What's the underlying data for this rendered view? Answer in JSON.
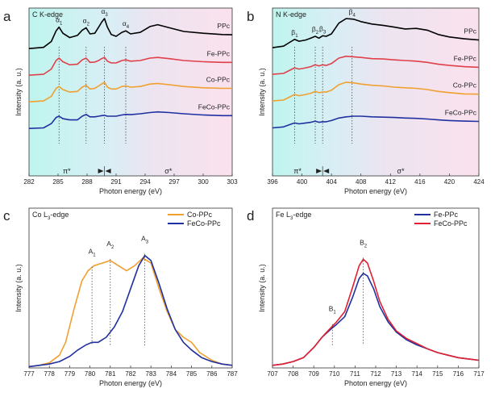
{
  "chart_data": [
    {
      "type": "line",
      "panel": "a",
      "title": "C K-edge",
      "xlabel": "Photon energy (eV)",
      "ylabel": "Intensity (a. u.)",
      "xlim": [
        282,
        303
      ],
      "xticks": [
        282,
        285,
        288,
        291,
        294,
        297,
        300,
        303
      ],
      "series_labels_side": "right",
      "series": [
        {
          "name": "PPc",
          "color": "#000000",
          "offset": 3,
          "x": [
            282,
            283.5,
            284.3,
            284.8,
            285.1,
            285.5,
            286.2,
            287.0,
            287.5,
            287.9,
            288.3,
            288.8,
            289.2,
            289.5,
            289.8,
            290.1,
            290.5,
            291.0,
            291.6,
            292.0,
            292.5,
            293.5,
            294.5,
            295.3,
            296.5,
            298,
            300,
            302,
            303
          ],
          "y": [
            0.02,
            0.06,
            0.25,
            0.6,
            0.72,
            0.52,
            0.38,
            0.45,
            0.62,
            0.7,
            0.5,
            0.52,
            0.72,
            0.88,
            1.0,
            0.72,
            0.48,
            0.42,
            0.55,
            0.6,
            0.5,
            0.55,
            0.74,
            0.8,
            0.7,
            0.58,
            0.52,
            0.48,
            0.47
          ]
        },
        {
          "name": "Fe-PPc",
          "color": "#e0404a",
          "offset": 2,
          "x": [
            282,
            283.5,
            284.3,
            284.8,
            285.1,
            285.5,
            286.2,
            287.0,
            287.5,
            287.9,
            288.3,
            288.8,
            289.2,
            289.5,
            289.8,
            290.1,
            290.5,
            291.0,
            291.6,
            292.0,
            292.5,
            293.5,
            294.5,
            295.3,
            296.5,
            298,
            300,
            302,
            303
          ],
          "y": [
            0.02,
            0.05,
            0.22,
            0.5,
            0.58,
            0.46,
            0.36,
            0.38,
            0.52,
            0.58,
            0.44,
            0.45,
            0.5,
            0.56,
            0.6,
            0.48,
            0.42,
            0.42,
            0.5,
            0.52,
            0.48,
            0.5,
            0.58,
            0.6,
            0.56,
            0.5,
            0.46,
            0.44,
            0.44
          ]
        },
        {
          "name": "Co-PPc",
          "color": "#f0a030",
          "offset": 1,
          "x": [
            282,
            283.5,
            284.3,
            284.8,
            285.1,
            285.5,
            286.2,
            287.0,
            287.5,
            287.9,
            288.3,
            288.8,
            289.2,
            289.5,
            289.8,
            290.1,
            290.5,
            291.0,
            291.6,
            292.0,
            292.5,
            293.5,
            294.5,
            295.3,
            296.5,
            298,
            300,
            302,
            303
          ],
          "y": [
            0.02,
            0.05,
            0.2,
            0.46,
            0.52,
            0.42,
            0.34,
            0.36,
            0.5,
            0.56,
            0.44,
            0.46,
            0.54,
            0.6,
            0.66,
            0.5,
            0.44,
            0.44,
            0.52,
            0.54,
            0.5,
            0.52,
            0.6,
            0.62,
            0.58,
            0.52,
            0.48,
            0.46,
            0.46
          ]
        },
        {
          "name": "FeCo-PPc",
          "color": "#2030a0",
          "offset": 0,
          "x": [
            282,
            283.5,
            284.3,
            284.8,
            285.1,
            285.5,
            286.2,
            287.0,
            287.5,
            287.9,
            288.3,
            288.8,
            289.2,
            289.5,
            289.8,
            290.1,
            290.5,
            291.0,
            291.6,
            292.0,
            292.5,
            293.5,
            294.5,
            295.3,
            296.5,
            298,
            300,
            302,
            303
          ],
          "y": [
            0.02,
            0.04,
            0.18,
            0.38,
            0.42,
            0.34,
            0.3,
            0.3,
            0.42,
            0.48,
            0.4,
            0.4,
            0.42,
            0.44,
            0.45,
            0.42,
            0.42,
            0.42,
            0.46,
            0.48,
            0.47,
            0.5,
            0.54,
            0.56,
            0.54,
            0.5,
            0.46,
            0.44,
            0.44
          ]
        }
      ],
      "peaks": [
        {
          "label": "α",
          "sub": "1",
          "x": 285.1
        },
        {
          "label": "α",
          "sub": "2",
          "x": 287.9
        },
        {
          "label": "α",
          "sub": "3",
          "x": 289.8
        },
        {
          "label": "α",
          "sub": "4",
          "x": 292.0
        }
      ],
      "regions": {
        "pi_label": "π*",
        "sigma_label": "σ*",
        "split_x": 289.8
      }
    },
    {
      "type": "line",
      "panel": "b",
      "title": "N K-edge",
      "xlabel": "Photon energy (eV)",
      "ylabel": "Intensity (a. u.)",
      "xlim": [
        396,
        424
      ],
      "xticks": [
        396,
        400,
        404,
        408,
        412,
        416,
        420,
        424
      ],
      "series_labels_side": "right",
      "series": [
        {
          "name": "PPc",
          "color": "#000000",
          "offset": 3,
          "x": [
            396,
            397.5,
            398.5,
            399.0,
            399.6,
            400.5,
            401.2,
            401.8,
            402.3,
            402.8,
            403.3,
            404,
            405,
            406,
            407,
            408,
            409.5,
            411,
            412.5,
            414,
            415.5,
            417,
            418.5,
            420,
            422,
            424
          ],
          "y": [
            0.05,
            0.1,
            0.25,
            0.32,
            0.26,
            0.3,
            0.36,
            0.42,
            0.36,
            0.44,
            0.42,
            0.5,
            0.85,
            1.0,
            0.98,
            0.9,
            0.82,
            0.78,
            0.72,
            0.66,
            0.68,
            0.62,
            0.48,
            0.4,
            0.34,
            0.3
          ]
        },
        {
          "name": "Fe-PPc",
          "color": "#e0404a",
          "offset": 2,
          "x": [
            396,
            397.5,
            398.5,
            399.0,
            399.6,
            400.5,
            401.2,
            401.8,
            402.3,
            402.8,
            403.3,
            404,
            405,
            406,
            407,
            408,
            409.5,
            411,
            412.5,
            414,
            415.5,
            417,
            418.5,
            420,
            422,
            424
          ],
          "y": [
            0.05,
            0.08,
            0.2,
            0.26,
            0.22,
            0.26,
            0.3,
            0.36,
            0.32,
            0.36,
            0.34,
            0.4,
            0.58,
            0.64,
            0.62,
            0.6,
            0.56,
            0.55,
            0.52,
            0.5,
            0.48,
            0.44,
            0.38,
            0.34,
            0.3,
            0.28
          ]
        },
        {
          "name": "Co-PPc",
          "color": "#f0a030",
          "offset": 1,
          "x": [
            396,
            397.5,
            398.5,
            399.0,
            399.6,
            400.5,
            401.2,
            401.8,
            402.3,
            402.8,
            403.3,
            404,
            405,
            406,
            407,
            408,
            409.5,
            411,
            412.5,
            414,
            415.5,
            417,
            418.5,
            420,
            422,
            424
          ],
          "y": [
            0.05,
            0.08,
            0.2,
            0.26,
            0.22,
            0.26,
            0.3,
            0.36,
            0.32,
            0.34,
            0.34,
            0.4,
            0.58,
            0.66,
            0.64,
            0.6,
            0.56,
            0.54,
            0.5,
            0.48,
            0.46,
            0.42,
            0.36,
            0.32,
            0.28,
            0.27
          ]
        },
        {
          "name": "FeCo-PPc",
          "color": "#2030a0",
          "offset": 0,
          "x": [
            396,
            397.5,
            398.5,
            399.0,
            399.6,
            400.5,
            401.2,
            401.8,
            402.3,
            402.8,
            403.3,
            404,
            405,
            406,
            407,
            408,
            409.5,
            411,
            412.5,
            414,
            415.5,
            417,
            418.5,
            420,
            422,
            424
          ],
          "y": [
            0.04,
            0.07,
            0.16,
            0.2,
            0.17,
            0.2,
            0.22,
            0.26,
            0.22,
            0.24,
            0.24,
            0.28,
            0.36,
            0.4,
            0.42,
            0.42,
            0.4,
            0.39,
            0.38,
            0.36,
            0.35,
            0.33,
            0.3,
            0.28,
            0.26,
            0.25
          ]
        }
      ],
      "peaks": [
        {
          "label": "β",
          "sub": "1",
          "x": 399.0
        },
        {
          "label": "β",
          "sub": "2",
          "x": 401.8
        },
        {
          "label": "β",
          "sub": "3",
          "x": 402.8
        },
        {
          "label": "β",
          "sub": "4",
          "x": 406.8
        }
      ],
      "regions": {
        "pi_label": "π*",
        "sigma_label": "σ*",
        "split_x": 402.8
      }
    },
    {
      "type": "line",
      "panel": "c",
      "title_main": "Co L",
      "title_sub": "3",
      "title_tail": "-edge",
      "xlabel": "Photon energy (eV)",
      "ylabel": "Intensity (a. u.)",
      "xlim": [
        777,
        787
      ],
      "ylim": [
        0,
        1.25
      ],
      "xticks": [
        777,
        778,
        779,
        780,
        781,
        782,
        783,
        784,
        785,
        786,
        787
      ],
      "legend_position": "top-right",
      "series": [
        {
          "name": "Co-PPc",
          "color": "#f0a030",
          "x": [
            777,
            777.5,
            778,
            778.5,
            778.8,
            779.2,
            779.6,
            779.9,
            780.2,
            780.6,
            781.0,
            781.4,
            781.8,
            782.2,
            782.6,
            783.0,
            783.4,
            783.8,
            784.2,
            784.6,
            785.0,
            785.4,
            786,
            786.5,
            787
          ],
          "y": [
            0.01,
            0.02,
            0.04,
            0.1,
            0.2,
            0.45,
            0.68,
            0.76,
            0.8,
            0.82,
            0.84,
            0.8,
            0.76,
            0.8,
            0.86,
            0.82,
            0.62,
            0.44,
            0.3,
            0.24,
            0.2,
            0.12,
            0.06,
            0.03,
            0.02
          ]
        },
        {
          "name": "FeCo-PPc",
          "color": "#2030a0",
          "x": [
            777,
            777.5,
            778,
            778.5,
            779.0,
            779.4,
            779.8,
            780.1,
            780.4,
            780.8,
            781.2,
            781.6,
            782.0,
            782.4,
            782.7,
            783.0,
            783.4,
            783.8,
            784.2,
            784.6,
            785.0,
            785.5,
            786,
            786.5,
            787
          ],
          "y": [
            0.01,
            0.02,
            0.03,
            0.05,
            0.09,
            0.14,
            0.18,
            0.2,
            0.2,
            0.24,
            0.32,
            0.44,
            0.62,
            0.8,
            0.88,
            0.84,
            0.66,
            0.46,
            0.3,
            0.2,
            0.14,
            0.08,
            0.05,
            0.03,
            0.02
          ]
        }
      ],
      "peaks": [
        {
          "label": "A",
          "sub": "1",
          "x": 780.1,
          "y": 0.78
        },
        {
          "label": "A",
          "sub": "2",
          "x": 781.0,
          "y": 0.84
        },
        {
          "label": "A",
          "sub": "3",
          "x": 782.7,
          "y": 0.88
        }
      ]
    },
    {
      "type": "line",
      "panel": "d",
      "title_main": "Fe L",
      "title_sub": "3",
      "title_tail": "-edge",
      "xlabel": "Photon energy (eV)",
      "ylabel": "Intensity (a. u.)",
      "xlim": [
        707,
        717
      ],
      "ylim": [
        0,
        1.25
      ],
      "xticks": [
        707,
        708,
        709,
        710,
        711,
        712,
        713,
        714,
        715,
        716,
        717
      ],
      "legend_position": "top-right",
      "series": [
        {
          "name": "Fe-PPc",
          "color": "#2030a0",
          "x": [
            707,
            707.5,
            708,
            708.5,
            709,
            709.4,
            709.8,
            710.1,
            710.5,
            710.9,
            711.2,
            711.4,
            711.6,
            711.9,
            712.2,
            712.6,
            713,
            713.5,
            714,
            714.5,
            715,
            715.5,
            716,
            716.5,
            717
          ],
          "y": [
            0.02,
            0.03,
            0.05,
            0.08,
            0.16,
            0.24,
            0.3,
            0.34,
            0.4,
            0.56,
            0.7,
            0.74,
            0.72,
            0.62,
            0.48,
            0.36,
            0.28,
            0.22,
            0.18,
            0.15,
            0.12,
            0.1,
            0.08,
            0.07,
            0.06
          ]
        },
        {
          "name": "FeCo-PPc",
          "color": "#e02030",
          "x": [
            707,
            707.5,
            708,
            708.5,
            709,
            709.4,
            709.8,
            710.1,
            710.5,
            710.9,
            711.2,
            711.4,
            711.6,
            711.9,
            712.2,
            712.6,
            713,
            713.5,
            714,
            714.5,
            715,
            715.5,
            716,
            716.5,
            717
          ],
          "y": [
            0.02,
            0.03,
            0.05,
            0.08,
            0.16,
            0.24,
            0.31,
            0.36,
            0.44,
            0.64,
            0.8,
            0.85,
            0.82,
            0.68,
            0.52,
            0.38,
            0.29,
            0.23,
            0.19,
            0.15,
            0.12,
            0.1,
            0.08,
            0.07,
            0.06
          ]
        }
      ],
      "peaks": [
        {
          "label": "B",
          "sub": "1",
          "x": 709.9,
          "y": 0.33
        },
        {
          "label": "B",
          "sub": "2",
          "x": 711.4,
          "y": 0.85
        }
      ]
    }
  ],
  "panel_letters": [
    "a",
    "b",
    "c",
    "d"
  ]
}
